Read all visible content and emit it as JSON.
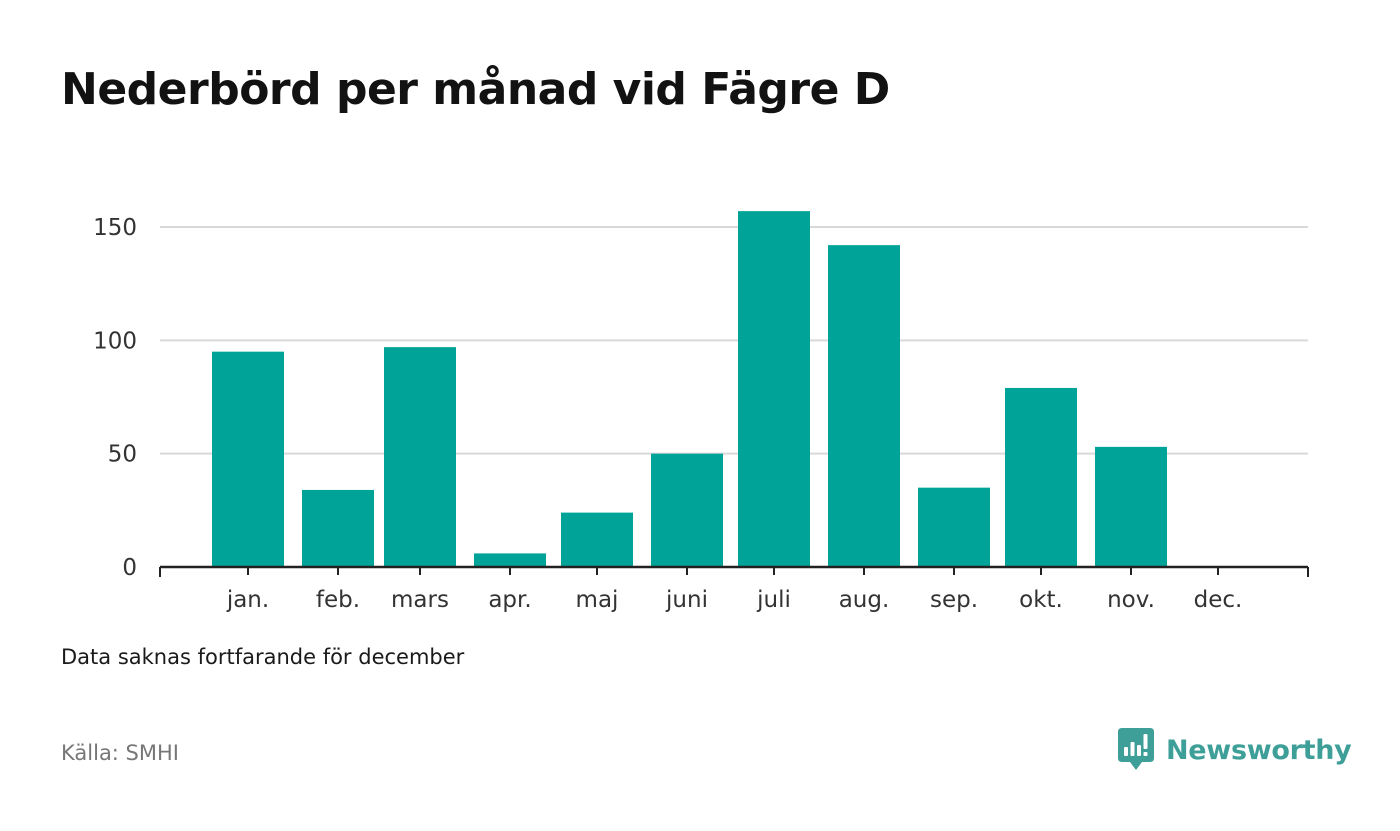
{
  "title": "Nederbörd per månad vid Fägre D",
  "note": "Data saknas fortfarande för december",
  "source": "Källa: SMHI",
  "brand": {
    "name": "Newsworthy",
    "icon": "newsworthy-logo-icon",
    "color": "#3e9f98"
  },
  "colors": {
    "bar": "#00a398",
    "grid": "#d9d9d9",
    "axis": "#222222"
  },
  "chart_data": {
    "type": "bar",
    "categories": [
      "jan.",
      "feb.",
      "mars",
      "apr.",
      "maj",
      "juni",
      "juli",
      "aug.",
      "sep.",
      "okt.",
      "nov.",
      "dec."
    ],
    "values": [
      95,
      34,
      97,
      6,
      24,
      50,
      157,
      142,
      35,
      79,
      53,
      null
    ],
    "title": "Nederbörd per månad vid Fägre D",
    "xlabel": "",
    "ylabel": "",
    "ylim": [
      0,
      150
    ],
    "yticks": [
      0,
      50,
      100,
      150
    ],
    "grid": true,
    "legend": "none"
  }
}
